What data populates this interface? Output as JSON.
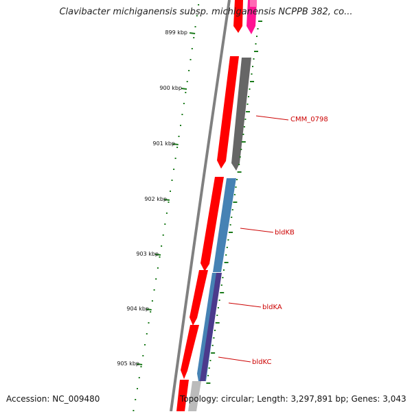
{
  "title": "Clavibacter michiganensis subsp. michiganensis NCPPB 382, co...",
  "footer": {
    "accession": "Accession: NC_009480",
    "summary": "Topology: circular; Length: 3,297,891 bp; Genes: 3,043"
  },
  "ticks": [
    {
      "label": "899 kbp"
    },
    {
      "label": "900 kbp"
    },
    {
      "label": "901 kbp"
    },
    {
      "label": "902 kbp"
    },
    {
      "label": "903 kbp"
    },
    {
      "label": "904 kbp"
    },
    {
      "label": "905 kbp"
    }
  ],
  "gene_labels": [
    {
      "label": "CMM_0798",
      "color": "#cc0000"
    },
    {
      "label": "bldKB",
      "color": "#cc0000"
    },
    {
      "label": "bldKA",
      "color": "#cc0000"
    },
    {
      "label": "bldKC",
      "color": "#cc0000"
    }
  ],
  "colors": {
    "cds": "#ff0000",
    "gene_gray": "#666666",
    "gene_blue": "#4682b4",
    "gene_purple": "#4b3a8c",
    "gene_pink": "#ff1493",
    "backbone": "#808080",
    "tick_green": "#1a7a1a"
  }
}
